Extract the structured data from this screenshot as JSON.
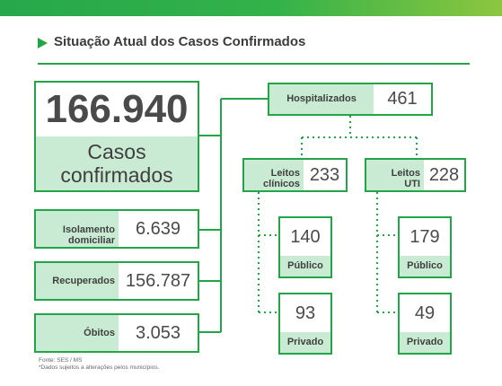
{
  "title": "Situação Atual dos Casos Confirmados",
  "total": {
    "value": "166.940",
    "label_line1": "Casos",
    "label_line2": "confirmados"
  },
  "isolamento": {
    "label_line1": "Isolamento",
    "label_line2": "domiciliar",
    "value": "6.639"
  },
  "recuperados": {
    "label": "Recuperados",
    "value": "156.787"
  },
  "obitos": {
    "label": "Óbitos",
    "value": "3.053"
  },
  "hospitalizados": {
    "label": "Hospitalizados",
    "value": "461"
  },
  "leitos_clinicos": {
    "label_line1": "Leitos",
    "label_line2": "clínicos",
    "value": "233",
    "publico": {
      "value": "140",
      "label": "Público"
    },
    "privado": {
      "value": "93",
      "label": "Privado"
    }
  },
  "leitos_uti": {
    "label_line1": "Leitos",
    "label_line2": "UTI",
    "value": "228",
    "publico": {
      "value": "179",
      "label": "Público"
    },
    "privado": {
      "value": "49",
      "label": "Privado"
    }
  },
  "footer": {
    "line1": "Fonte: SES / MS",
    "line2": "*Dados sujeitos a alterações pelos municípios."
  },
  "colors": {
    "green": "#22a447",
    "light_green": "#c9ebd3"
  }
}
